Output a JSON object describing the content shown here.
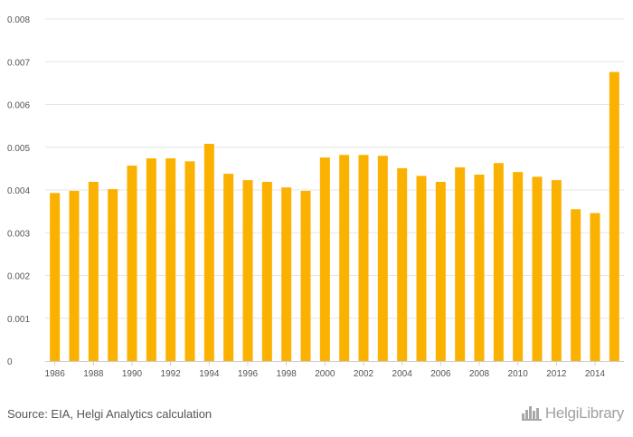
{
  "chart_data": {
    "type": "bar",
    "categories": [
      "1986",
      "1987",
      "1988",
      "1989",
      "1990",
      "1991",
      "1992",
      "1993",
      "1994",
      "1995",
      "1996",
      "1997",
      "1998",
      "1999",
      "2000",
      "2001",
      "2002",
      "2003",
      "2004",
      "2005",
      "2006",
      "2007",
      "2008",
      "2009",
      "2010",
      "2011",
      "2012",
      "2013",
      "2014",
      "2015"
    ],
    "x_tick_labels": [
      "1986",
      "1988",
      "1990",
      "1992",
      "1994",
      "1996",
      "1998",
      "2000",
      "2002",
      "2004",
      "2006",
      "2008",
      "2010",
      "2012",
      "2014"
    ],
    "values": [
      0.00393,
      0.00398,
      0.00419,
      0.00402,
      0.00457,
      0.00474,
      0.00474,
      0.00467,
      0.00508,
      0.00438,
      0.00423,
      0.00419,
      0.00406,
      0.00398,
      0.00476,
      0.00482,
      0.00482,
      0.0048,
      0.00451,
      0.00433,
      0.00419,
      0.00453,
      0.00436,
      0.00463,
      0.00442,
      0.00431,
      0.00423,
      0.00355,
      0.00346,
      0.00676
    ],
    "ylim": [
      0,
      0.008
    ],
    "y_ticks": [
      "0",
      "0.001",
      "0.002",
      "0.003",
      "0.004",
      "0.005",
      "0.006",
      "0.007",
      "0.008"
    ],
    "title": "",
    "xlabel": "",
    "ylabel": "",
    "grid": true,
    "bar_color": "#FBB100",
    "grid_color": "#e6e6e6",
    "axis_color": "#cccccc"
  },
  "footer": {
    "source": "Source: EIA, Helgi Analytics calculation",
    "logo_text": "HelgiLibrary",
    "logo_icon": "city-skyline-icon"
  }
}
